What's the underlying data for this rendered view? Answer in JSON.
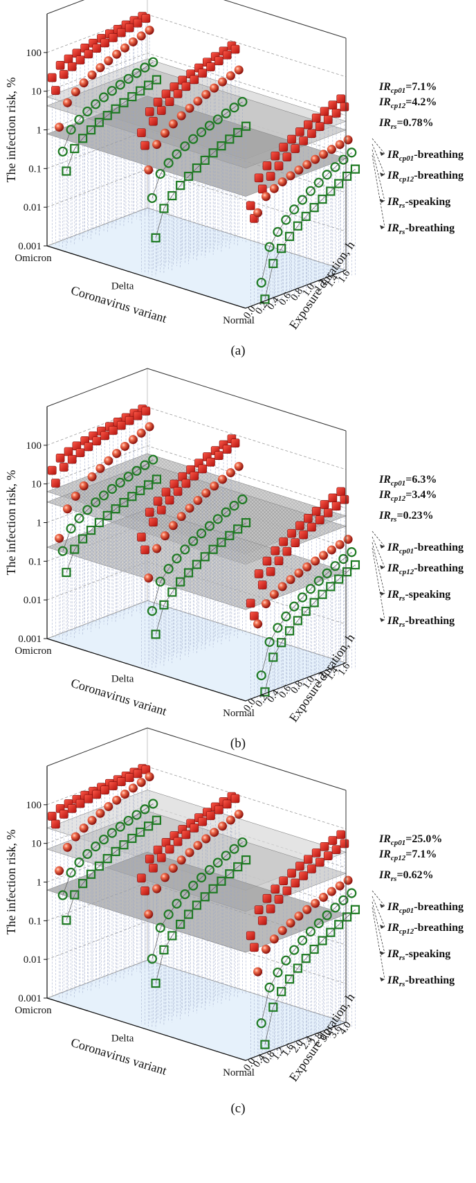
{
  "chart_data": [
    {
      "type": "scatter",
      "panel_label": "(a)",
      "ylabel": "The infection risk, %",
      "xlabel": "Coronavirus variant",
      "zlabel": "Exposure duration, h",
      "variants": [
        "Omicron",
        "Delta",
        "Normal"
      ],
      "duration_ticks": [
        "0.0",
        "0.2",
        "0.4",
        "0.6",
        "0.8",
        "1.0",
        "1.2",
        "1.4",
        "1.6"
      ],
      "y_ticks": [
        "0.001",
        "0.01",
        "0.1",
        "1",
        "10",
        "100"
      ],
      "ylim": [
        0.001,
        1000
      ],
      "duration_range": [
        0,
        1.7
      ],
      "planes": [
        {
          "name": "IRcp01",
          "value": 7.1,
          "label_main": "IR",
          "label_sub": "cp01",
          "label_tail": "=7.1%"
        },
        {
          "name": "IRcp12",
          "value": 4.2,
          "label_main": "IR",
          "label_sub": "cp12",
          "label_tail": "=4.2%"
        },
        {
          "name": "IRrs",
          "value": 0.78,
          "label_main": "IR",
          "label_sub": "rs",
          "label_tail": "=0.78%"
        }
      ],
      "legend": [
        {
          "main": "IR",
          "sub": "cp01",
          "tail": "-breathing"
        },
        {
          "main": "IR",
          "sub": "cp12",
          "tail": "-breathing"
        },
        {
          "main": "IR",
          "sub": "rs",
          "tail": "-speaking"
        },
        {
          "main": "IR",
          "sub": "rs",
          "tail": "-breathing"
        }
      ],
      "series": [
        {
          "name": "IRcp01-breathing",
          "marker": "cube",
          "variant": "Omicron",
          "start": 20,
          "end": 100
        },
        {
          "name": "IRcp12-breathing",
          "marker": "cube",
          "variant": "Omicron",
          "start": 10,
          "end": 95
        },
        {
          "name": "IRrs-speaking",
          "marker": "sphere",
          "variant": "Omicron",
          "start": 1.2,
          "end": 50
        },
        {
          "name": "IRrs-breathing",
          "marker": "circle",
          "variant": "Omicron",
          "start": 0.3,
          "end": 8
        },
        {
          "name": "IRrs-breathing-low",
          "marker": "square",
          "variant": "Omicron",
          "start": 0.1,
          "end": 3
        },
        {
          "name": "IRcp01-breathing",
          "marker": "cube",
          "variant": "Delta",
          "start": 4,
          "end": 92
        },
        {
          "name": "IRcp12-breathing",
          "marker": "cube",
          "variant": "Delta",
          "start": 2,
          "end": 80
        },
        {
          "name": "IRrs-speaking",
          "marker": "sphere",
          "variant": "Delta",
          "start": 0.5,
          "end": 25
        },
        {
          "name": "IRrs-breathing",
          "marker": "circle",
          "variant": "Delta",
          "start": 0.1,
          "end": 4
        },
        {
          "name": "IRrs-breathing-low",
          "marker": "square",
          "variant": "Delta",
          "start": 0.01,
          "end": 1
        },
        {
          "name": "IRcp01-breathing",
          "marker": "cube",
          "variant": "Normal",
          "start": 0.4,
          "end": 30
        },
        {
          "name": "IRcp12-breathing",
          "marker": "cube",
          "variant": "Normal",
          "start": 0.2,
          "end": 20
        },
        {
          "name": "IRrs-speaking",
          "marker": "sphere",
          "variant": "Normal",
          "start": 0.3,
          "end": 3
        },
        {
          "name": "IRrs-breathing",
          "marker": "circle",
          "variant": "Normal",
          "start": 0.005,
          "end": 1.5
        },
        {
          "name": "IRrs-breathing-low",
          "marker": "square",
          "variant": "Normal",
          "start": 0.002,
          "end": 0.6
        }
      ]
    },
    {
      "type": "scatter",
      "panel_label": "(b)",
      "ylabel": "The infection risk, %",
      "xlabel": "Coronavirus variant",
      "zlabel": "Exposure duration, h",
      "variants": [
        "Omicron",
        "Delta",
        "Normal"
      ],
      "duration_ticks": [
        "0.0",
        "0.2",
        "0.4",
        "0.6",
        "0.8",
        "1.0",
        "1.2",
        "1.4",
        "1.6"
      ],
      "y_ticks": [
        "0.001",
        "0.01",
        "0.1",
        "1",
        "10",
        "100"
      ],
      "ylim": [
        0.001,
        1000
      ],
      "duration_range": [
        0,
        1.7
      ],
      "planes": [
        {
          "name": "IRcp01",
          "value": 6.3,
          "label_main": "IR",
          "label_sub": "cp01",
          "label_tail": "=6.3%"
        },
        {
          "name": "IRcp12",
          "value": 3.4,
          "label_main": "IR",
          "label_sub": "cp12",
          "label_tail": "=3.4%"
        },
        {
          "name": "IRrs",
          "value": 0.23,
          "label_main": "IR",
          "label_sub": "rs",
          "label_tail": "=0.23%"
        }
      ],
      "legend": [
        {
          "main": "IR",
          "sub": "cp01",
          "tail": "-breathing"
        },
        {
          "main": "IR",
          "sub": "cp12",
          "tail": "-breathing"
        },
        {
          "main": "IR",
          "sub": "rs",
          "tail": "-speaking"
        },
        {
          "main": "IR",
          "sub": "rs",
          "tail": "-breathing"
        }
      ],
      "series": [
        {
          "name": "IRcp01-breathing",
          "marker": "cube",
          "variant": "Omicron",
          "start": 20,
          "end": 100
        },
        {
          "name": "IRcp12-breathing",
          "marker": "cube",
          "variant": "Omicron",
          "start": 10,
          "end": 95
        },
        {
          "name": "IRrs-speaking",
          "marker": "sphere",
          "variant": "Omicron",
          "start": 0.4,
          "end": 40
        },
        {
          "name": "IRrs-breathing",
          "marker": "circle",
          "variant": "Omicron",
          "start": 0.2,
          "end": 6
        },
        {
          "name": "IRrs-breathing-low",
          "marker": "square",
          "variant": "Omicron",
          "start": 0.06,
          "end": 2
        },
        {
          "name": "IRcp01-breathing",
          "marker": "cube",
          "variant": "Delta",
          "start": 2,
          "end": 90
        },
        {
          "name": "IRcp12-breathing",
          "marker": "cube",
          "variant": "Delta",
          "start": 1,
          "end": 75
        },
        {
          "name": "IRrs-speaking",
          "marker": "sphere",
          "variant": "Delta",
          "start": 0.2,
          "end": 20
        },
        {
          "name": "IRrs-breathing",
          "marker": "circle",
          "variant": "Delta",
          "start": 0.03,
          "end": 3
        },
        {
          "name": "IRrs-breathing-low",
          "marker": "square",
          "variant": "Delta",
          "start": 0.008,
          "end": 0.8
        },
        {
          "name": "IRcp01-breathing",
          "marker": "cube",
          "variant": "Normal",
          "start": 0.3,
          "end": 30
        },
        {
          "name": "IRcp12-breathing",
          "marker": "cube",
          "variant": "Normal",
          "start": 0.15,
          "end": 20
        },
        {
          "name": "IRrs-speaking",
          "marker": "sphere",
          "variant": "Normal",
          "start": 0.1,
          "end": 2
        },
        {
          "name": "IRrs-breathing",
          "marker": "circle",
          "variant": "Normal",
          "start": 0.005,
          "end": 1
        },
        {
          "name": "IRrs-breathing-low",
          "marker": "square",
          "variant": "Normal",
          "start": 0.002,
          "end": 0.5
        }
      ]
    },
    {
      "type": "scatter",
      "panel_label": "(c)",
      "ylabel": "The infection risk, %",
      "xlabel": "Coronavirus variant",
      "zlabel": "Exposure duration, h",
      "variants": [
        "Omicron",
        "Delta",
        "Normal"
      ],
      "duration_ticks": [
        "0.0",
        "0.4",
        "0.8",
        "1.2",
        "1.6",
        "2.0",
        "2.4",
        "2.8",
        "3.2",
        "3.6",
        "4.0"
      ],
      "y_ticks": [
        "0.001",
        "0.01",
        "0.1",
        "1",
        "10",
        "100"
      ],
      "ylim": [
        0.001,
        1000
      ],
      "duration_range": [
        0,
        4.2
      ],
      "planes": [
        {
          "name": "IRcp01",
          "value": 25.0,
          "label_main": "IR",
          "label_sub": "cp01",
          "label_tail": "=25.0%"
        },
        {
          "name": "IRcp12",
          "value": 7.1,
          "label_main": "IR",
          "label_sub": "cp12",
          "label_tail": "=7.1%"
        },
        {
          "name": "IRrs",
          "value": 0.62,
          "label_main": "IR",
          "label_sub": "rs",
          "label_tail": "=0.62%"
        }
      ],
      "legend": [
        {
          "main": "IR",
          "sub": "cp01",
          "tail": "-breathing"
        },
        {
          "main": "IR",
          "sub": "cp12",
          "tail": "-breathing"
        },
        {
          "main": "IR",
          "sub": "rs",
          "tail": "-speaking"
        },
        {
          "main": "IR",
          "sub": "rs",
          "tail": "-breathing"
        }
      ],
      "series": [
        {
          "name": "IRcp01-breathing",
          "marker": "cube",
          "variant": "Omicron",
          "start": 45,
          "end": 100
        },
        {
          "name": "IRcp12-breathing",
          "marker": "cube",
          "variant": "Omicron",
          "start": 30,
          "end": 100
        },
        {
          "name": "IRrs-speaking",
          "marker": "sphere",
          "variant": "Omicron",
          "start": 2,
          "end": 70
        },
        {
          "name": "IRrs-breathing",
          "marker": "circle",
          "variant": "Omicron",
          "start": 0.5,
          "end": 15
        },
        {
          "name": "IRrs-breathing-low",
          "marker": "square",
          "variant": "Omicron",
          "start": 0.12,
          "end": 6
        },
        {
          "name": "IRcp01-breathing",
          "marker": "cube",
          "variant": "Delta",
          "start": 6,
          "end": 100
        },
        {
          "name": "IRcp12-breathing",
          "marker": "cube",
          "variant": "Delta",
          "start": 3,
          "end": 95
        },
        {
          "name": "IRrs-speaking",
          "marker": "sphere",
          "variant": "Delta",
          "start": 0.8,
          "end": 40
        },
        {
          "name": "IRrs-breathing",
          "marker": "circle",
          "variant": "Delta",
          "start": 0.06,
          "end": 8
        },
        {
          "name": "IRrs-breathing-low",
          "marker": "square",
          "variant": "Delta",
          "start": 0.015,
          "end": 3
        },
        {
          "name": "IRcp01-breathing",
          "marker": "cube",
          "variant": "Normal",
          "start": 1.5,
          "end": 80
        },
        {
          "name": "IRcp12-breathing",
          "marker": "cube",
          "variant": "Normal",
          "start": 0.8,
          "end": 50
        },
        {
          "name": "IRrs-speaking",
          "marker": "sphere",
          "variant": "Normal",
          "start": 0.2,
          "end": 6
        },
        {
          "name": "IRrs-breathing",
          "marker": "circle",
          "variant": "Normal",
          "start": 0.01,
          "end": 3
        },
        {
          "name": "IRrs-breathing-low",
          "marker": "square",
          "variant": "Normal",
          "start": 0.003,
          "end": 1.2
        }
      ]
    }
  ]
}
